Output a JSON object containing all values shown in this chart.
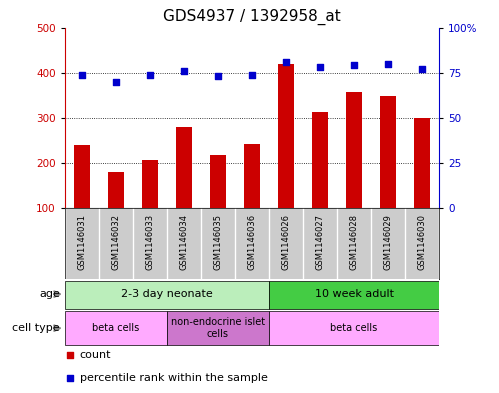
{
  "title": "GDS4937 / 1392958_at",
  "samples": [
    "GSM1146031",
    "GSM1146032",
    "GSM1146033",
    "GSM1146034",
    "GSM1146035",
    "GSM1146036",
    "GSM1146026",
    "GSM1146027",
    "GSM1146028",
    "GSM1146029",
    "GSM1146030"
  ],
  "counts": [
    240,
    180,
    207,
    280,
    218,
    243,
    420,
    312,
    358,
    348,
    300
  ],
  "percentiles": [
    74,
    70,
    74,
    76,
    73,
    74,
    81,
    78,
    79,
    80,
    77
  ],
  "bar_color": "#cc0000",
  "dot_color": "#0000cc",
  "ylim_left": [
    100,
    500
  ],
  "ylim_right": [
    0,
    100
  ],
  "yticks_left": [
    100,
    200,
    300,
    400,
    500
  ],
  "yticks_right": [
    0,
    25,
    50,
    75,
    100
  ],
  "ytick_labels_right": [
    "0",
    "25",
    "50",
    "75",
    "100%"
  ],
  "gridlines": [
    200,
    300,
    400
  ],
  "age_groups": [
    {
      "label": "2-3 day neonate",
      "start": 0,
      "end": 6,
      "color": "#bbeebb"
    },
    {
      "label": "10 week adult",
      "start": 6,
      "end": 11,
      "color": "#44cc44"
    }
  ],
  "cell_type_groups": [
    {
      "label": "beta cells",
      "start": 0,
      "end": 3,
      "color": "#ffaaff"
    },
    {
      "label": "non-endocrine islet\ncells",
      "start": 3,
      "end": 6,
      "color": "#cc77cc"
    },
    {
      "label": "beta cells",
      "start": 6,
      "end": 11,
      "color": "#ffaaff"
    }
  ],
  "title_fontsize": 11,
  "tick_fontsize": 7.5,
  "sample_fontsize": 6,
  "annot_fontsize": 8,
  "legend_fontsize": 8
}
